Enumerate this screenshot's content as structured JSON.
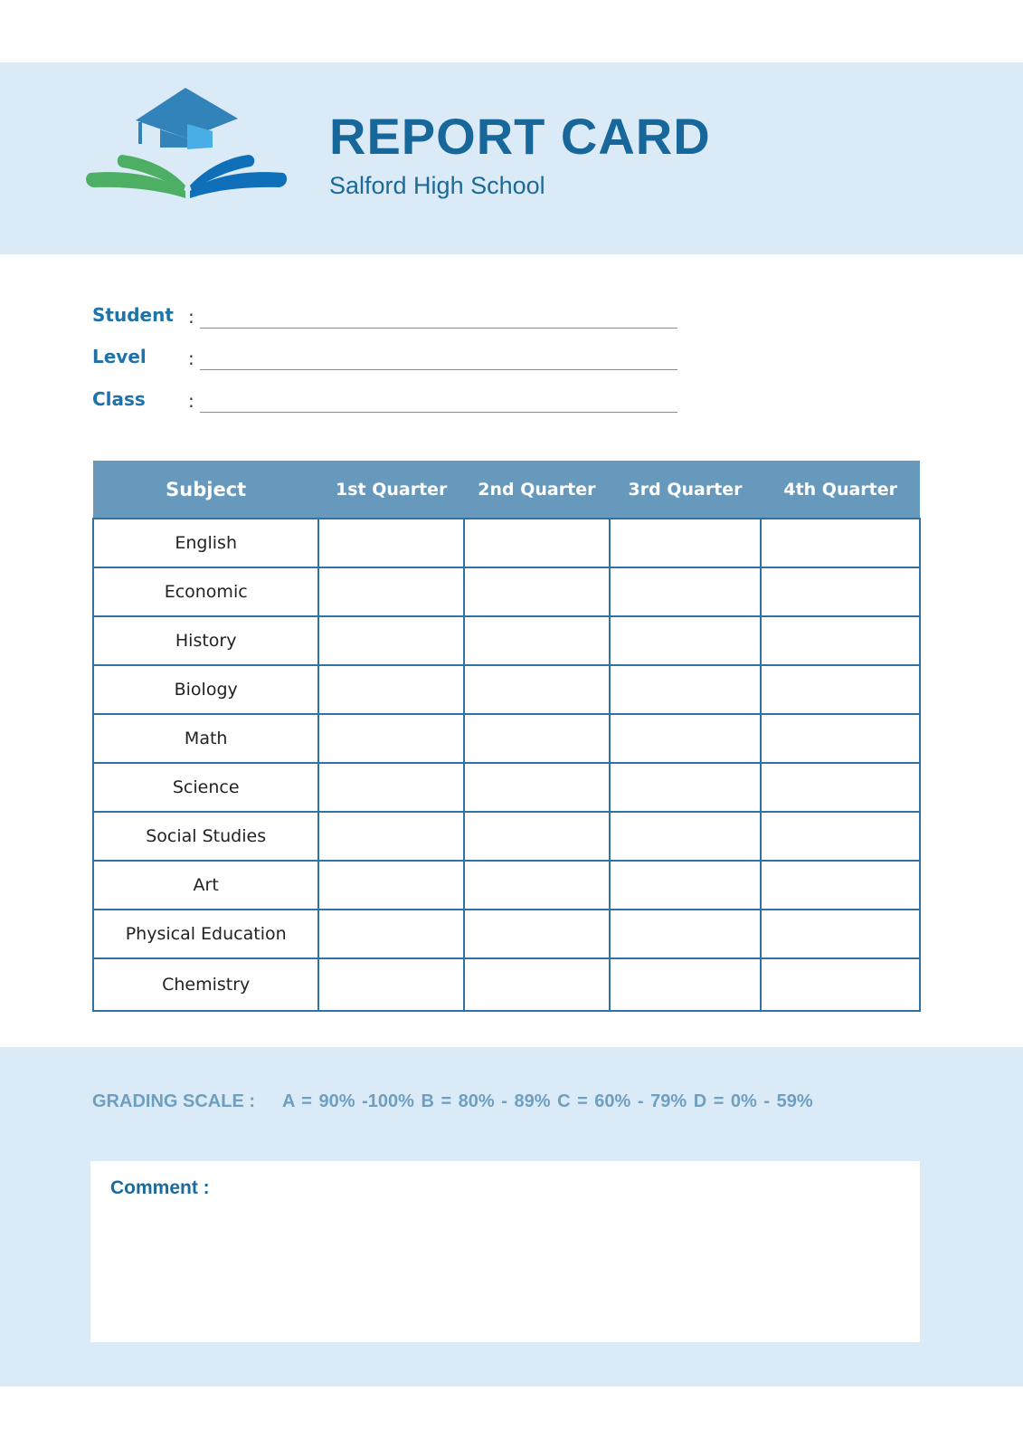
{
  "header": {
    "title": "REPORT CARD",
    "school": "Salford High School",
    "logo_icon": "graduation-cap-book-icon",
    "colors": {
      "band": "#dbeaf7",
      "title": "#17679a",
      "cap": "#3183ba",
      "green": "#4caf63",
      "blue": "#0f6fb8"
    }
  },
  "fields": [
    {
      "label": "Student",
      "colon": ":"
    },
    {
      "label": "Level",
      "colon": ":"
    },
    {
      "label": "Class",
      "colon": ":"
    }
  ],
  "table": {
    "headers": [
      "Subject",
      "1st Quarter",
      "2nd Quarter",
      "3rd Quarter",
      "4th Quarter"
    ],
    "subjects": [
      "English",
      "Economic",
      "History",
      "Biology",
      "Math",
      "Science",
      "Social Studies",
      "Art",
      "Physical Education",
      "Chemistry"
    ]
  },
  "grading": {
    "label": "GRADING SCALE :",
    "scale": "A = 90% -100%  B = 80% - 89%  C = 60% - 79%  D = 0% - 59%"
  },
  "comment": {
    "label": "Comment :"
  }
}
